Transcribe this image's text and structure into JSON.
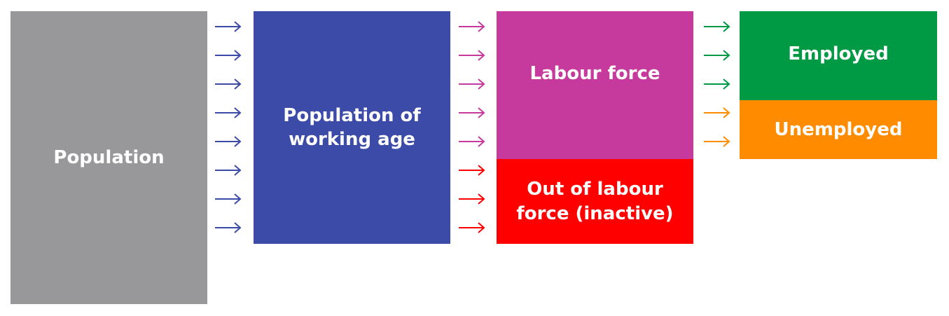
{
  "boxes": {
    "population": {
      "label": "Population",
      "color": "#98989b"
    },
    "working_age": {
      "label": "Population of working age",
      "color": "#3c4ba8"
    },
    "labour_force": {
      "label": "Labour force",
      "color": "#c73a9d"
    },
    "inactive": {
      "label": "Out of labour force (inactive)",
      "color": "#ff0000"
    },
    "employed": {
      "label": "Employed",
      "color": "#009a44"
    },
    "unemployed": {
      "label": "Unemployed",
      "color": "#ff8c00"
    }
  },
  "arrow_groups": {
    "population_to_working": {
      "count": 8,
      "color": "#3c4ba8"
    },
    "working_to_labour": {
      "count": 5,
      "color": "#c73a9d"
    },
    "working_to_inactive": {
      "count": 3,
      "color": "#ff0000"
    },
    "labour_to_employed": {
      "count": 3,
      "color": "#009a44"
    },
    "labour_to_unemployed": {
      "count": 2,
      "color": "#ff8c00"
    }
  }
}
